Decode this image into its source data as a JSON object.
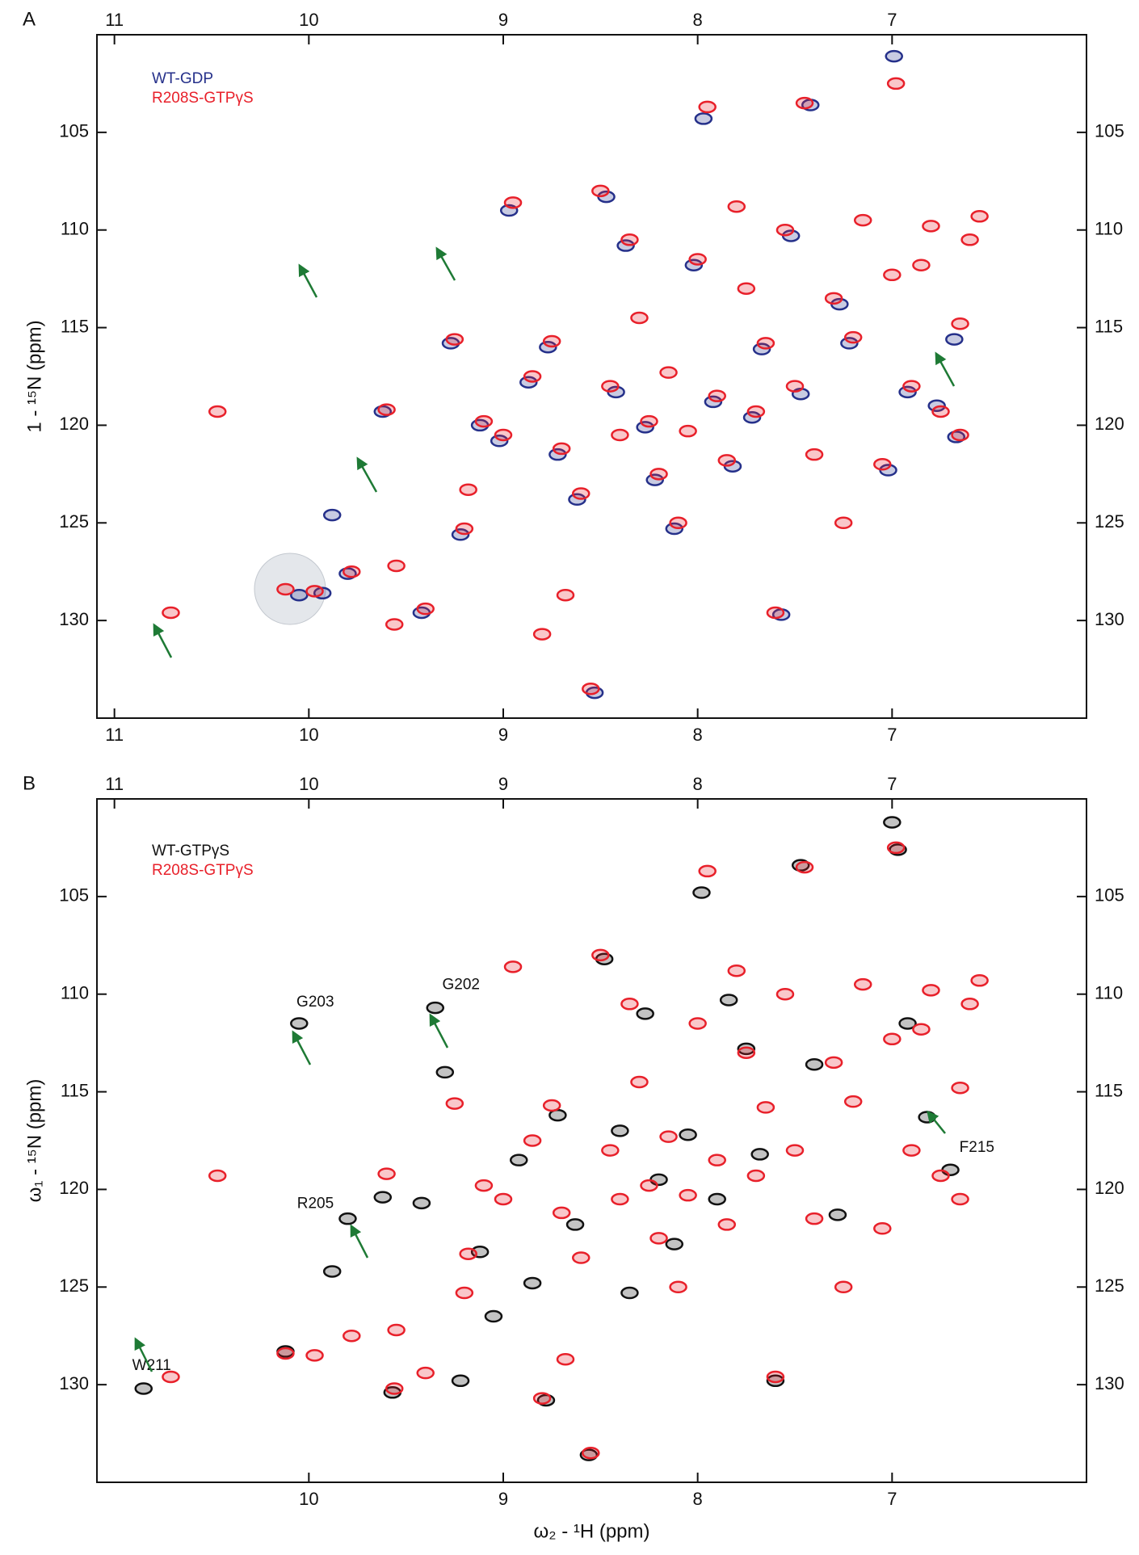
{
  "chart_data": [
    {
      "type": "scatter",
      "panel_label": "A",
      "ylabel": "1 - ¹⁵N (ppm)",
      "xlim": [
        11.09,
        6.0
      ],
      "ylim": [
        100,
        135
      ],
      "xticks_top": [
        11,
        10,
        9,
        8,
        7
      ],
      "xticks_bottom": [
        11,
        10,
        9,
        8,
        7
      ],
      "yticks": [
        105,
        110,
        115,
        120,
        125,
        130
      ],
      "series": [
        {
          "name": "WT-GDP",
          "color": "#25308a",
          "x": [
            10.05,
            9.93,
            9.8,
            9.62,
            9.88,
            9.42,
            9.27,
            9.22,
            9.12,
            9.02,
            8.97,
            8.87,
            8.77,
            8.72,
            8.62,
            8.53,
            8.47,
            8.42,
            8.37,
            8.27,
            8.22,
            8.12,
            8.02,
            7.97,
            7.92,
            7.82,
            7.72,
            7.67,
            7.57,
            7.52,
            7.47,
            7.42,
            7.27,
            7.22,
            7.02,
            6.99,
            6.92,
            6.77,
            6.68,
            6.67
          ],
          "values": [
            128.7,
            128.6,
            127.6,
            119.3,
            124.6,
            129.6,
            115.8,
            125.6,
            120.0,
            120.8,
            109.0,
            117.8,
            116.0,
            121.5,
            123.8,
            133.7,
            108.3,
            118.3,
            110.8,
            120.1,
            122.8,
            125.3,
            111.8,
            104.3,
            118.8,
            122.1,
            119.6,
            116.1,
            129.7,
            110.3,
            118.4,
            103.6,
            113.8,
            115.8,
            122.3,
            101.1,
            118.3,
            119.0,
            115.6,
            120.6
          ]
        },
        {
          "name": "R208S-GTPγS",
          "color": "#e8202a",
          "x": [
            10.71,
            10.47,
            10.12,
            9.97,
            9.78,
            9.6,
            9.56,
            9.55,
            9.4,
            9.25,
            9.2,
            9.18,
            9.1,
            9.0,
            8.95,
            8.85,
            8.8,
            8.75,
            8.7,
            8.68,
            8.6,
            8.55,
            8.5,
            8.45,
            8.4,
            8.35,
            8.3,
            8.25,
            8.2,
            8.15,
            8.1,
            8.05,
            8.0,
            7.95,
            7.9,
            7.85,
            7.8,
            7.75,
            7.7,
            7.65,
            7.6,
            7.55,
            7.5,
            7.45,
            7.4,
            7.3,
            7.25,
            7.2,
            7.15,
            7.05,
            7.0,
            6.98,
            6.9,
            6.85,
            6.75,
            6.65,
            6.65,
            6.6,
            6.55,
            6.8
          ],
          "values": [
            129.6,
            119.3,
            128.4,
            128.5,
            127.5,
            119.2,
            130.2,
            127.2,
            129.4,
            115.6,
            125.3,
            123.3,
            119.8,
            120.5,
            108.6,
            117.5,
            130.7,
            115.7,
            121.2,
            128.7,
            123.5,
            133.5,
            108.0,
            118.0,
            120.5,
            110.5,
            114.5,
            119.8,
            122.5,
            117.3,
            125.0,
            120.3,
            111.5,
            103.7,
            118.5,
            121.8,
            108.8,
            113.0,
            119.3,
            115.8,
            129.6,
            110.0,
            118.0,
            103.5,
            121.5,
            113.5,
            125.0,
            115.5,
            109.5,
            122.0,
            112.3,
            102.5,
            118.0,
            111.8,
            119.3,
            120.5,
            114.8,
            110.5,
            109.3,
            109.8
          ]
        }
      ]
    },
    {
      "type": "scatter",
      "panel_label": "B",
      "ylabel": "ω₁ - ¹⁵N (ppm)",
      "xlabel": "ω₂ - ¹H (ppm)",
      "xlim": [
        11.09,
        6.0
      ],
      "ylim": [
        100,
        135
      ],
      "xticks_top": [
        11,
        10,
        9,
        8,
        7
      ],
      "xticks_bottom": [
        10,
        9,
        8,
        7
      ],
      "yticks": [
        105,
        110,
        115,
        120,
        125,
        130
      ],
      "series": [
        {
          "name": "WT-GTPγS",
          "color": "#111111",
          "x": [
            10.85,
            10.05,
            9.35,
            9.8,
            6.82,
            9.88,
            9.42,
            10.12,
            9.62,
            9.57,
            9.3,
            9.22,
            9.12,
            9.05,
            8.92,
            8.85,
            8.78,
            8.72,
            8.63,
            8.56,
            8.48,
            8.4,
            8.35,
            8.27,
            8.2,
            8.12,
            8.05,
            7.98,
            7.9,
            7.84,
            7.75,
            7.68,
            7.6,
            7.47,
            7.4,
            7.28,
            7.0,
            6.97,
            6.7,
            6.92
          ],
          "values": [
            130.2,
            111.5,
            110.7,
            121.5,
            116.3,
            124.2,
            120.7,
            128.3,
            120.4,
            130.4,
            114.0,
            129.8,
            123.2,
            126.5,
            118.5,
            124.8,
            130.8,
            116.2,
            121.8,
            133.6,
            108.2,
            117.0,
            125.3,
            111.0,
            119.5,
            122.8,
            117.2,
            104.8,
            120.5,
            110.3,
            112.8,
            118.2,
            129.8,
            103.4,
            113.6,
            121.3,
            101.2,
            102.6,
            119.0,
            111.5
          ]
        },
        {
          "name": "R208S-GTPγS",
          "color": "#e8202a",
          "x": [
            10.71,
            10.47,
            10.12,
            9.97,
            9.78,
            9.6,
            9.56,
            9.55,
            9.4,
            9.25,
            9.2,
            9.18,
            9.1,
            9.0,
            8.95,
            8.85,
            8.8,
            8.75,
            8.7,
            8.68,
            8.6,
            8.55,
            8.5,
            8.45,
            8.4,
            8.35,
            8.3,
            8.25,
            8.2,
            8.15,
            8.1,
            8.05,
            8.0,
            7.95,
            7.9,
            7.85,
            7.8,
            7.75,
            7.7,
            7.65,
            7.6,
            7.55,
            7.5,
            7.45,
            7.4,
            7.3,
            7.25,
            7.2,
            7.15,
            7.05,
            7.0,
            6.98,
            6.9,
            6.85,
            6.75,
            6.65,
            6.65,
            6.6,
            6.55,
            6.8
          ],
          "values": [
            129.6,
            119.3,
            128.4,
            128.5,
            127.5,
            119.2,
            130.2,
            127.2,
            129.4,
            115.6,
            125.3,
            123.3,
            119.8,
            120.5,
            108.6,
            117.5,
            130.7,
            115.7,
            121.2,
            128.7,
            123.5,
            133.5,
            108.0,
            118.0,
            120.5,
            110.5,
            114.5,
            119.8,
            122.5,
            117.3,
            125.0,
            120.3,
            111.5,
            103.7,
            118.5,
            121.8,
            108.8,
            113.0,
            119.3,
            115.8,
            129.6,
            110.0,
            118.0,
            103.5,
            121.5,
            113.5,
            125.0,
            115.5,
            109.5,
            122.0,
            112.3,
            102.5,
            118.0,
            111.8,
            119.3,
            120.5,
            114.8,
            110.5,
            109.3,
            109.8
          ]
        }
      ],
      "annotations": [
        {
          "text": "W211",
          "x": 10.85,
          "y": 130.2
        },
        {
          "text": "G203",
          "x": 10.05,
          "y": 111.5
        },
        {
          "text": "G202",
          "x": 9.35,
          "y": 110.7
        },
        {
          "text": "R205",
          "x": 9.8,
          "y": 121.5
        },
        {
          "text": "F215",
          "x": 6.82,
          "y": 116.3
        }
      ]
    }
  ]
}
